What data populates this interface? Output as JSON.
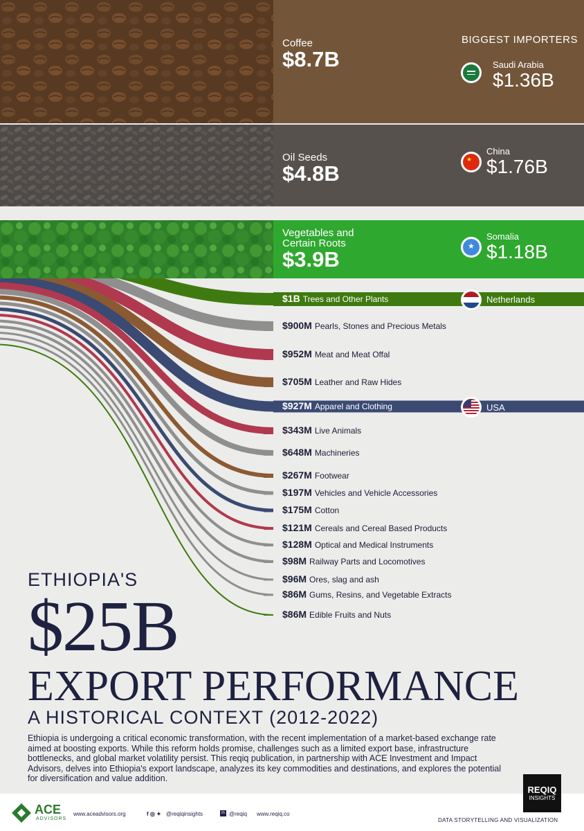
{
  "title": {
    "small": "ETHIOPIA'S",
    "big": "$25B",
    "main": "EXPORT PERFORMANCE",
    "sub": "A HISTORICAL CONTEXT (2012-2022)"
  },
  "intro": "Ethiopia is undergoing a critical economic transformation, with the recent implementation of a market-based exchange rate aimed at boosting exports. While this reform holds promise, challenges such as a limited export base, infrastructure bottlenecks, and global market volatility persist. This reqiq publication, in partnership with ACE Investment and Impact Advisors, delves into Ethiopia's export landscape, analyzes its key commodities and destinations, and explores the potential for diversification and value addition.",
  "importers_header": "BIGGEST IMPORTERS",
  "colors": {
    "coffee": "#735539",
    "oilseeds": "#57514d",
    "veg": "#2fa82f",
    "trees": "#3f7a10",
    "gray": "#8f8f8f",
    "crimson": "#b0394f",
    "brown": "#8b5a33",
    "navy": "#3a4a72",
    "lightslate": "#8a94a4",
    "text": "#1e2140",
    "bg": "#ececea"
  },
  "chart_data": {
    "type": "bar",
    "title": "ETHIOPIA'S $25B EXPORT PERFORMANCE",
    "subtitle": "A HISTORICAL CONTEXT (2012-2022)",
    "unit": "USD",
    "categories": [
      "Coffee",
      "Oil Seeds",
      "Vegetables and Certain Roots",
      "Trees and Other Plants",
      "Pearls, Stones and Precious Metals",
      "Meat and Meat Offal",
      "Leather and Raw Hides",
      "Apparel and Clothing",
      "Live Animals",
      "Machineries",
      "Footwear",
      "Vehicles and Vehicle Accessories",
      "Cotton",
      "Cereals and Cereal Based Products",
      "Optical and Medical Instruments",
      "Railway Parts and Locomotives",
      "Ores, slag and ash",
      "Gums, Resins, and Vegetable Extracts",
      "Edible Fruits and Nuts"
    ],
    "values": [
      8700,
      4800,
      3900,
      1000,
      900,
      952,
      705,
      927,
      343,
      648,
      267,
      197,
      175,
      121,
      128,
      98,
      96,
      86,
      86
    ],
    "value_unit": "million USD",
    "top": [
      {
        "name": "Coffee",
        "value_label": "$8.7B",
        "value": 8.7,
        "color": "coffee",
        "importer": {
          "country": "Saudi Arabia",
          "value_label": "$1.36B",
          "value": 1.36,
          "flag": "saudi-flag-icon"
        }
      },
      {
        "name": "Oil Seeds",
        "value_label": "$4.8B",
        "value": 4.8,
        "color": "oilseeds",
        "importer": {
          "country": "China",
          "value_label": "$1.76B",
          "value": 1.76,
          "flag": "china-flag-icon"
        }
      },
      {
        "name_lines": [
          "Vegetables and",
          "Certain Roots"
        ],
        "value_label": "$3.9B",
        "value": 3.9,
        "color": "veg",
        "importer": {
          "country": "Somalia",
          "value_label": "$1.18B",
          "value": 1.18,
          "flag": "somalia-flag-icon"
        }
      }
    ],
    "rows": [
      {
        "value_label": "$1B",
        "label": "Trees and Other Plants",
        "value": 1000,
        "color": "trees",
        "band": true,
        "importer": {
          "country": "Netherlands",
          "flag": "netherlands-flag-icon"
        }
      },
      {
        "value_label": "$900M",
        "label": "Pearls, Stones and Precious Metals",
        "value": 900,
        "color": "gray"
      },
      {
        "value_label": "$952M",
        "label": "Meat and Meat Offal",
        "value": 952,
        "color": "crimson"
      },
      {
        "value_label": "$705M",
        "label": "Leather and Raw Hides",
        "value": 705,
        "color": "brown"
      },
      {
        "value_label": "$927M",
        "label": "Apparel and Clothing",
        "value": 927,
        "color": "navy",
        "band": true,
        "importer": {
          "country": "USA",
          "flag": "usa-flag-icon"
        }
      },
      {
        "value_label": "$343M",
        "label": "Live Animals",
        "value": 343,
        "color": "crimson"
      },
      {
        "value_label": "$648M",
        "label": "Machineries",
        "value": 648,
        "color": "gray"
      },
      {
        "value_label": "$267M",
        "label": "Footwear",
        "value": 267,
        "color": "brown"
      },
      {
        "value_label": "$197M",
        "label": "Vehicles and Vehicle Accessories",
        "value": 197,
        "color": "gray"
      },
      {
        "value_label": "$175M",
        "label": "Cotton",
        "value": 175,
        "color": "navy"
      },
      {
        "value_label": "$121M",
        "label": "Cereals and Cereal Based Products",
        "value": 121,
        "color": "crimson"
      },
      {
        "value_label": "$128M",
        "label": "Optical and Medical Instruments",
        "value": 128,
        "color": "gray"
      },
      {
        "value_label": "$98M",
        "label": "Railway Parts and Locomotives",
        "value": 98,
        "color": "gray"
      },
      {
        "value_label": "$96M",
        "label": "Ores, slag and ash",
        "value": 96,
        "color": "gray"
      },
      {
        "value_label": "$86M",
        "label": "Gums, Resins, and Vegetable Extracts",
        "value": 86,
        "color": "gray"
      },
      {
        "value_label": "$86M",
        "label": "Edible Fruits and Nuts",
        "value": 86,
        "color": "trees"
      }
    ]
  },
  "footer": {
    "brand": "ACE",
    "brand_sub": "ADVISORS",
    "website": "www.aceadvisors.org",
    "social": "@reqiqinsights",
    "linkedin": "@reqiq",
    "site2": "www.reqiq.co",
    "logo_line1": "REQIQ",
    "logo_line2": "INSIGHTS",
    "tagline": "DATA STORYTELLING AND VISUALIZATION"
  }
}
